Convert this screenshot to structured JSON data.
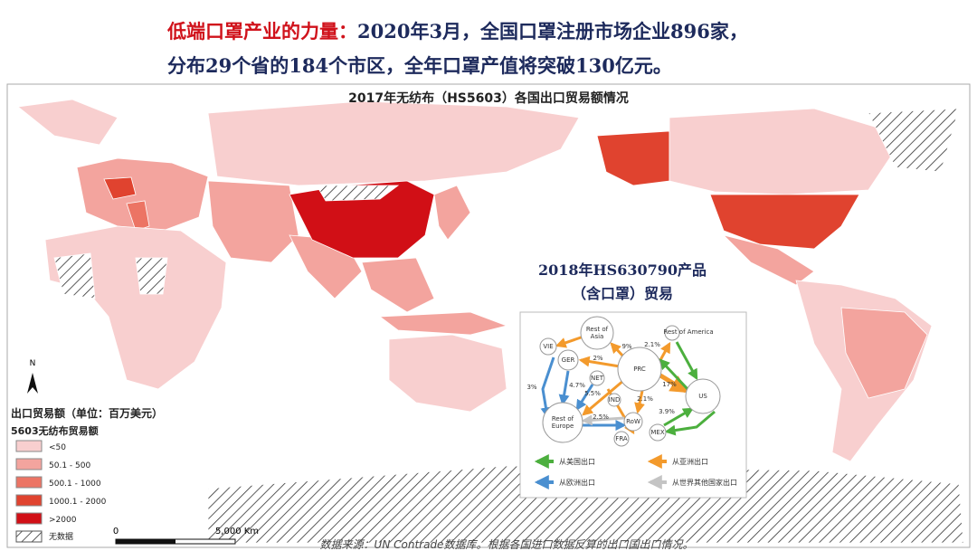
{
  "header": {
    "highlight": "低端口罩产业的力量：",
    "line1": "2020年3月，全国口罩注册市场企业896家，",
    "line2": "分布29个省的184个市区，全年口罩产值将突破130亿元。"
  },
  "map": {
    "title": "2017年无纺布（HS5603）各国出口贸易额情况",
    "north": "N",
    "scale_start": "0",
    "scale_end": "5,000 Km",
    "source": "数据来源：UN Contrade数据库。根据各国进口数据反算的出口国出口情况。"
  },
  "legend": {
    "title": "出口贸易额（单位：百万美元）",
    "subtitle": "5603无纺布贸易额",
    "items": [
      {
        "label": "<50",
        "color": "#f8cfcf"
      },
      {
        "label": "50.1 - 500",
        "color": "#f3a49e"
      },
      {
        "label": "500.1 - 1000",
        "color": "#ec7464"
      },
      {
        "label": "1000.1 - 2000",
        "color": "#e0432f"
      },
      {
        "label": ">2000",
        "color": "#d10f16"
      }
    ],
    "no_data": "无数据"
  },
  "inset": {
    "title1": "2018年HS630790产品",
    "title2": "（含口罩）贸易",
    "nodes": [
      "Rest of Asia",
      "Rest of America",
      "VIE",
      "GER",
      "NET",
      "PRC",
      "US",
      "IND",
      "Rest of Europe",
      "RoW",
      "MEX",
      "FRA"
    ],
    "edge_labels": [
      "9%",
      "2.1%",
      "2%",
      "4.7%",
      "5.5%",
      "17%",
      "3%",
      "2.1%",
      "2.5%",
      "3.9%"
    ],
    "legend": [
      {
        "label": "从美国出口",
        "color": "#4caf3e"
      },
      {
        "label": "从亚洲出口",
        "color": "#f39a2c"
      },
      {
        "label": "从欧洲出口",
        "color": "#4a8fd0"
      },
      {
        "label": "从世界其他国家出口",
        "color": "#c4c4c4"
      }
    ]
  }
}
